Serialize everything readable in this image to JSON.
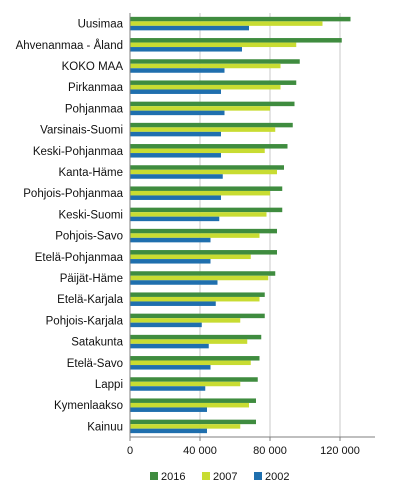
{
  "chart_data": {
    "type": "bar",
    "orientation": "horizontal",
    "title": "",
    "xlabel": "",
    "ylabel": "",
    "xlim": [
      0,
      140000
    ],
    "xticks": [
      0,
      40000,
      80000,
      120000
    ],
    "xtick_labels": [
      "0",
      "40 000",
      "80 000",
      "120 000"
    ],
    "grid": "vertical",
    "legend_position": "bottom",
    "categories": [
      "Uusimaa",
      "Ahvenanmaa - Åland",
      "KOKO MAA",
      "Pirkanmaa",
      "Pohjanmaa",
      "Varsinais-Suomi",
      "Keski-Pohjanmaa",
      "Kanta-Häme",
      "Pohjois-Pohjanmaa",
      "Keski-Suomi",
      "Pohjois-Savo",
      "Etelä-Pohjanmaa",
      "Päijät-Häme",
      "Etelä-Karjala",
      "Pohjois-Karjala",
      "Satakunta",
      "Etelä-Savo",
      "Lappi",
      "Kymenlaakso",
      "Kainuu"
    ],
    "series": [
      {
        "name": "2016",
        "color": "#3f8c3f",
        "values": [
          126000,
          121000,
          97000,
          95000,
          94000,
          93000,
          90000,
          88000,
          87000,
          87000,
          84000,
          84000,
          83000,
          77000,
          77000,
          75000,
          74000,
          73000,
          72000,
          72000
        ]
      },
      {
        "name": "2007",
        "color": "#c8dc32",
        "values": [
          110000,
          95000,
          86000,
          86000,
          80000,
          83000,
          77000,
          84000,
          80000,
          78000,
          74000,
          69000,
          79000,
          74000,
          63000,
          67000,
          69000,
          63000,
          68000,
          63000
        ]
      },
      {
        "name": "2002",
        "color": "#1f6fae",
        "values": [
          68000,
          64000,
          54000,
          52000,
          54000,
          52000,
          52000,
          53000,
          52000,
          51000,
          46000,
          46000,
          50000,
          49000,
          41000,
          45000,
          46000,
          43000,
          44000,
          44000
        ]
      }
    ]
  }
}
